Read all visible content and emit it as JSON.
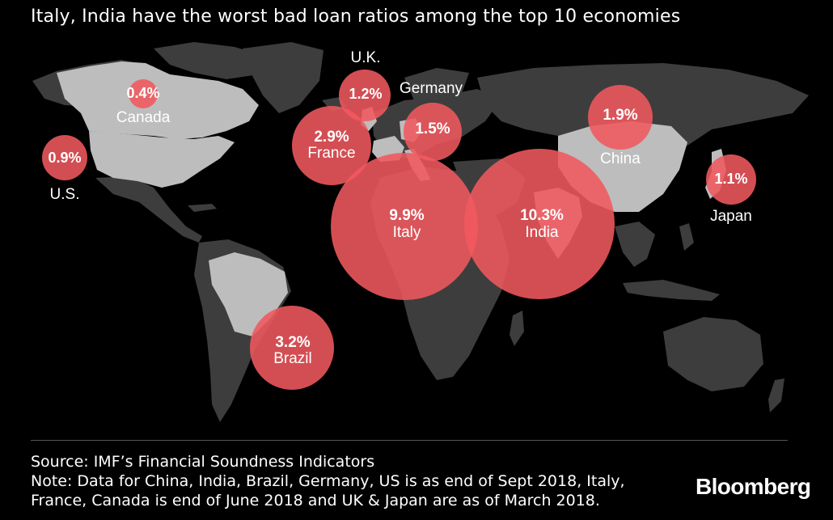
{
  "title": "Italy, India have the worst bad loan ratios among the top 10 economies",
  "colors": {
    "bubble": "#f0595f",
    "land": "#3d3d3d",
    "highlight": "#bdbdbd",
    "background": "#000000"
  },
  "countries": [
    {
      "name": "India",
      "value": "10.3%",
      "ratio": 10.3
    },
    {
      "name": "Italy",
      "value": "9.9%",
      "ratio": 9.9
    },
    {
      "name": "Brazil",
      "value": "3.2%",
      "ratio": 3.2
    },
    {
      "name": "France",
      "value": "2.9%",
      "ratio": 2.9
    },
    {
      "name": "China",
      "value": "1.9%",
      "ratio": 1.9
    },
    {
      "name": "Germany",
      "value": "1.5%",
      "ratio": 1.5
    },
    {
      "name": "U.K.",
      "value": "1.2%",
      "ratio": 1.2
    },
    {
      "name": "Japan",
      "value": "1.1%",
      "ratio": 1.1
    },
    {
      "name": "U.S.",
      "value": "0.9%",
      "ratio": 0.9
    },
    {
      "name": "Canada",
      "value": "0.4%",
      "ratio": 0.4
    }
  ],
  "source": "Source: IMF’s Financial Soundness Indicators",
  "note_line1": "Note: Data for China, India, Brazil, Germany, US is as end of Sept 2018, Italy,",
  "note_line2": "France, Canada is end of June 2018 and UK & Japan are as of March 2018.",
  "logo": "Bloomberg"
}
